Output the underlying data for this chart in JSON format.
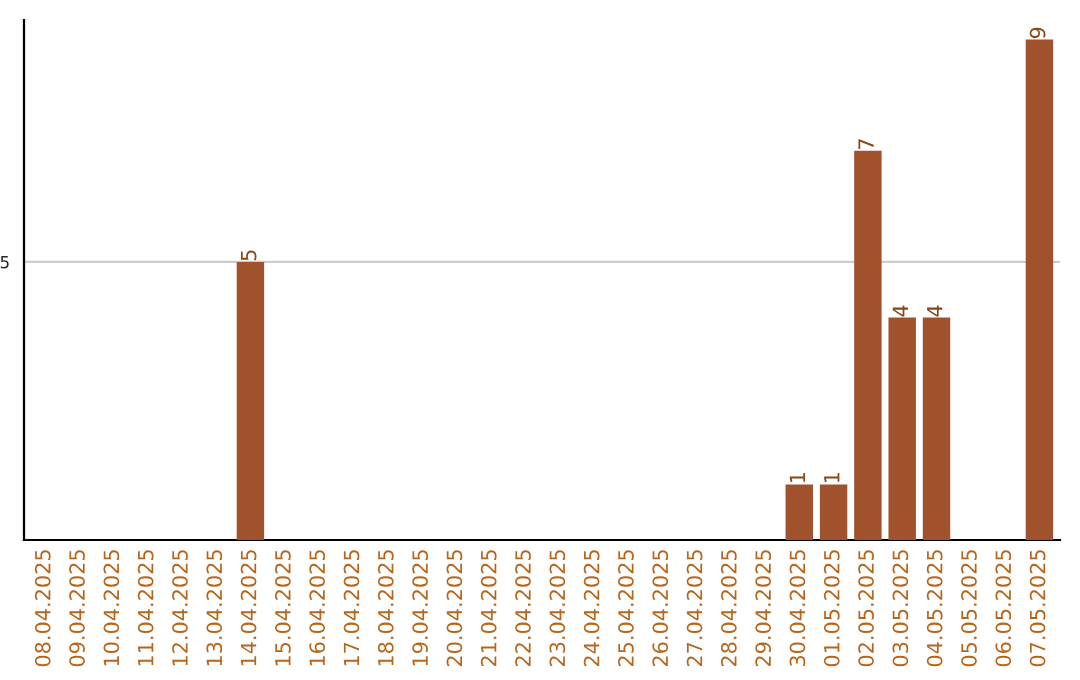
{
  "chart_data": {
    "type": "bar",
    "categories": [
      "08.04.2025",
      "09.04.2025",
      "10.04.2025",
      "11.04.2025",
      "12.04.2025",
      "13.04.2025",
      "14.04.2025",
      "15.04.2025",
      "16.04.2025",
      "17.04.2025",
      "18.04.2025",
      "19.04.2025",
      "20.04.2025",
      "21.04.2025",
      "22.04.2025",
      "23.04.2025",
      "24.04.2025",
      "25.04.2025",
      "26.04.2025",
      "27.04.2025",
      "28.04.2025",
      "29.04.2025",
      "30.04.2025",
      "01.05.2025",
      "02.05.2025",
      "03.05.2025",
      "04.05.2025",
      "05.05.2025",
      "06.05.2025",
      "07.05.2025"
    ],
    "values": [
      0,
      0,
      0,
      0,
      0,
      0,
      5,
      0,
      0,
      0,
      0,
      0,
      0,
      0,
      0,
      0,
      0,
      0,
      0,
      0,
      0,
      0,
      1,
      1,
      7,
      4,
      4,
      0,
      0,
      9
    ],
    "value_labels": [
      null,
      null,
      null,
      null,
      null,
      null,
      "5",
      null,
      null,
      null,
      null,
      null,
      null,
      null,
      null,
      null,
      null,
      null,
      null,
      null,
      null,
      null,
      "1",
      "1",
      "7",
      "4",
      "4",
      null,
      null,
      "9"
    ],
    "color": "#a0522d",
    "ylim": [
      0,
      9.35
    ],
    "yticks": [
      5
    ],
    "grid": "y"
  }
}
